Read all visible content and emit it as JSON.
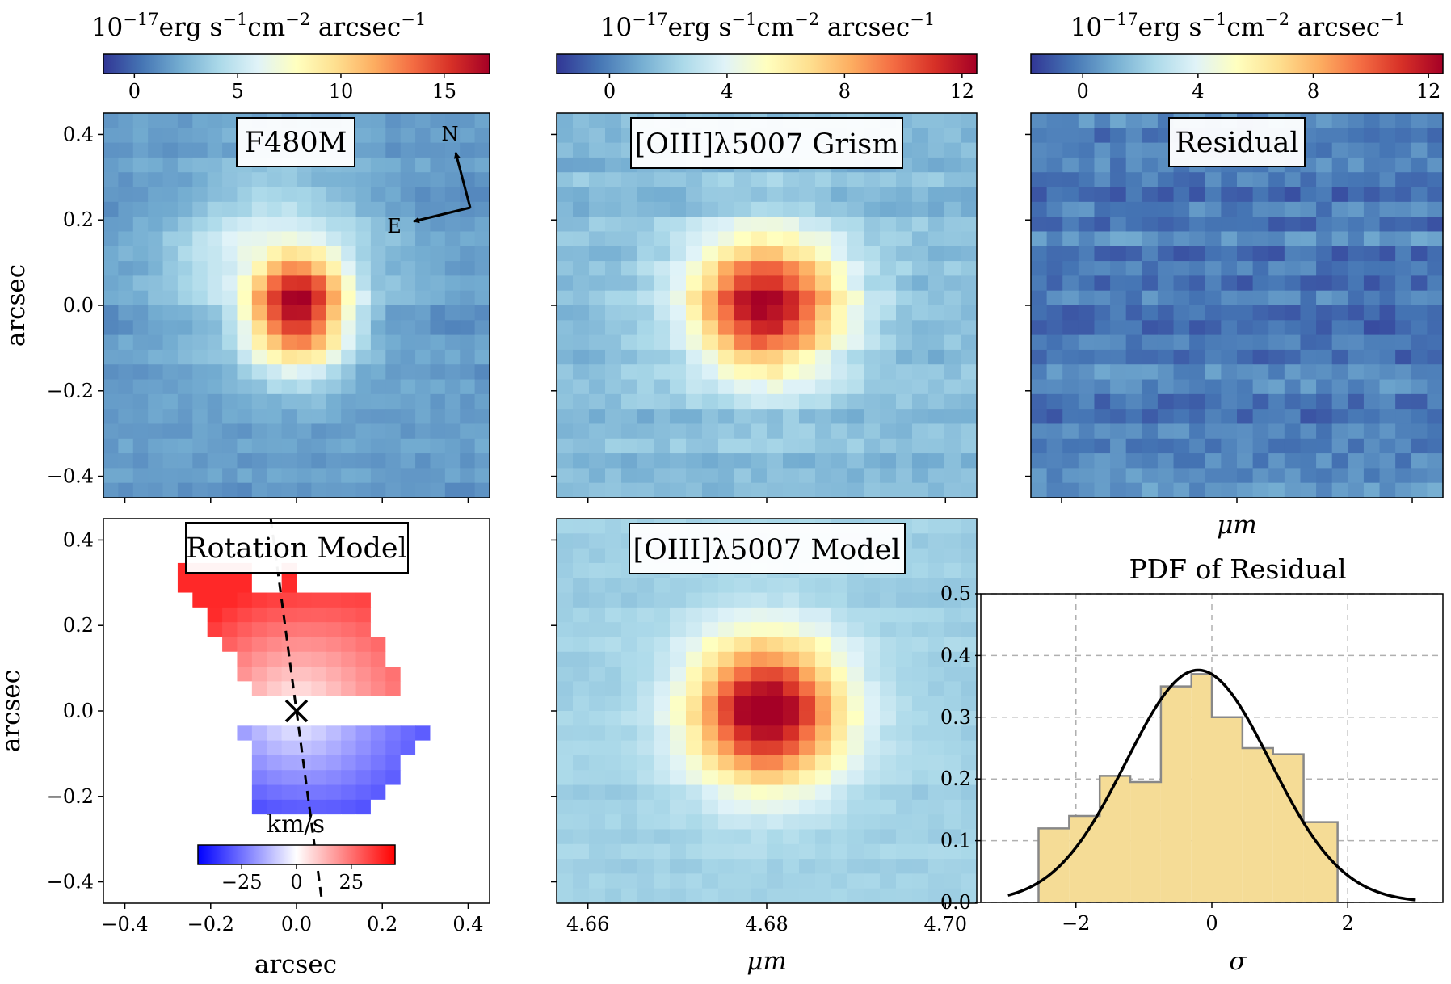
{
  "figure": {
    "colorbar_units": {
      "base": "10",
      "exp1": "−17",
      "unit1": "erg s",
      "exp2": "−1",
      "unit2": "cm",
      "exp3": "−2",
      "unit3": " arcsec",
      "exp4": "−1"
    },
    "colors": {
      "map_cmap": "RdYlBu_r",
      "velocity_cmap": "bwr",
      "histogram_fill": "#f5dc96",
      "histogram_edge": "#888888",
      "gaussian_line": "#000000",
      "grid": "#b0b0b0"
    }
  },
  "chart_data": [
    {
      "id": "f480m",
      "type": "heatmap",
      "title": "F480M",
      "ylabel": "arcsec",
      "colorbar": {
        "ticks": [
          "0",
          "5",
          "10",
          "15"
        ],
        "range": [
          -1.5,
          17.2
        ]
      },
      "yticks": [
        "0.4",
        "0.2",
        "0.0",
        "−0.2",
        "−0.4"
      ],
      "compass": [
        "N",
        "E"
      ],
      "source": {
        "peak": 16.0,
        "center_x": 0.0,
        "center_y": 0.0,
        "sigma_x": 0.09,
        "sigma_y": 0.1
      }
    },
    {
      "id": "grism",
      "type": "heatmap",
      "title": "[OIII]λ5007 Grism",
      "colorbar": {
        "ticks": [
          "0",
          "4",
          "8",
          "12"
        ],
        "range": [
          -1.8,
          12.5
        ]
      },
      "xrange_um": [
        4.6565,
        4.7035
      ],
      "source": {
        "peak": 11.0,
        "center_um": 4.68,
        "center_y": 0.0,
        "sigma_um": 0.006,
        "sigma_y": 0.11
      }
    },
    {
      "id": "residual",
      "type": "heatmap",
      "title": "Residual",
      "xlabel": "μm",
      "colorbar": {
        "ticks": [
          "0",
          "4",
          "8",
          "12"
        ],
        "range": [
          -1.8,
          12.5
        ]
      },
      "value_range": [
        -1.8,
        1.6
      ]
    },
    {
      "id": "rotation",
      "type": "heatmap",
      "title": "Rotation Model",
      "xlabel": "arcsec",
      "ylabel": "arcsec",
      "xticks": [
        "−0.4",
        "−0.2",
        "0.0",
        "0.2",
        "0.4"
      ],
      "yticks": [
        "0.4",
        "0.2",
        "0.0",
        "−0.2",
        "−0.4"
      ],
      "colorbar": {
        "label": "km/s",
        "ticks": [
          "−25",
          "0",
          "25"
        ],
        "range": [
          -45,
          45
        ]
      },
      "center": [
        0.0,
        0.0
      ],
      "position_angle_line": [
        [
          -0.06,
          0.45
        ],
        [
          0.06,
          -0.45
        ]
      ],
      "velocity_range_kms": [
        -38,
        38
      ]
    },
    {
      "id": "model",
      "type": "heatmap",
      "title": "[OIII]λ5007 Model",
      "xlabel": "μm",
      "xticks": [
        "4.66",
        "4.68",
        "4.70"
      ],
      "xtick_values": [
        4.66,
        4.68,
        4.7
      ],
      "source": {
        "peak": 11.0,
        "center_um": 4.68,
        "center_y": 0.0,
        "sigma_um": 0.006,
        "sigma_y": 0.12
      }
    },
    {
      "id": "pdf",
      "type": "bar",
      "title": "PDF of Residual",
      "xlabel": "σ",
      "xlim": [
        -3.4,
        3.4
      ],
      "ylim": [
        0.0,
        0.5
      ],
      "xticks": [
        "−2",
        "0",
        "2"
      ],
      "xtick_values": [
        -2,
        0,
        2
      ],
      "yticks": [
        "0.0",
        "0.1",
        "0.2",
        "0.3",
        "0.4",
        "0.5"
      ],
      "ytick_values": [
        0.0,
        0.1,
        0.2,
        0.3,
        0.4,
        0.5
      ],
      "grid": true,
      "bin_edges": [
        -2.55,
        -2.1,
        -1.65,
        -1.2,
        -0.75,
        -0.3,
        0.0,
        0.45,
        0.9,
        1.35,
        1.85
      ],
      "bin_values": [
        0.12,
        0.14,
        0.205,
        0.195,
        0.35,
        0.37,
        0.3,
        0.25,
        0.24,
        0.13
      ],
      "gaussian": {
        "mu": -0.2,
        "sigma": 1.06,
        "x_range": [
          -3.0,
          3.0
        ]
      }
    }
  ]
}
